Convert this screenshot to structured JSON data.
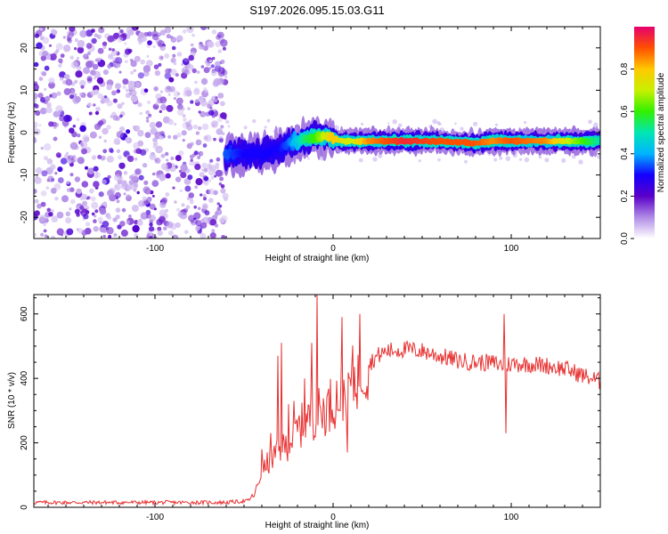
{
  "chart_data": [
    {
      "type": "heatmap",
      "title": "S197.2026.095.15.03.G11",
      "xlabel": "Height of straight line (km)",
      "ylabel": "Frequency (Hz)",
      "xlim": [
        -168,
        150
      ],
      "ylim": [
        -25,
        25
      ],
      "xticks": [
        -100,
        0,
        100
      ],
      "yticks": [
        -20,
        -10,
        0,
        10,
        20
      ],
      "noise_region_x": [
        -168,
        -60
      ],
      "signal_track": {
        "x": [
          -60,
          -50,
          -40,
          -30,
          -25,
          -20,
          -15,
          -10,
          -5,
          0,
          5,
          10,
          20,
          40,
          60,
          80,
          90,
          100,
          120,
          150
        ],
        "freq": [
          -5,
          -5,
          -5,
          -4,
          -2.5,
          -2,
          -1.5,
          -1,
          -1,
          -1.5,
          -2,
          -2,
          -2,
          -2,
          -2,
          -2.5,
          -2,
          -2,
          -2,
          -2
        ],
        "amplitude": [
          0.35,
          0.3,
          0.3,
          0.3,
          0.35,
          0.45,
          0.55,
          0.6,
          0.7,
          0.8,
          0.75,
          0.7,
          0.85,
          0.95,
          0.9,
          0.9,
          0.85,
          0.9,
          0.85,
          0.5
        ]
      },
      "colorbar": {
        "label": "Normalized spectral amplitude",
        "range": [
          0,
          1
        ],
        "ticks": [
          "0.0",
          "0.2",
          "0.4",
          "0.6",
          "0.8"
        ],
        "colors": [
          "#ffffff",
          "#b08be6",
          "#5a00c8",
          "#1400ff",
          "#00b4ff",
          "#00e6b4",
          "#32f000",
          "#c8f000",
          "#ffc800",
          "#ff5000",
          "#e6006e"
        ]
      }
    },
    {
      "type": "line",
      "xlabel": "Height of straight line (km)",
      "ylabel": "SNR (10 * v/v)",
      "xlim": [
        -168,
        150
      ],
      "ylim": [
        0,
        660
      ],
      "xticks": [
        -100,
        0,
        100
      ],
      "yticks": [
        0,
        200,
        400,
        600
      ],
      "color": "#e83030",
      "envelope": {
        "x": [
          -168,
          -60,
          -48,
          -44,
          -40,
          -35,
          -30,
          -25,
          -20,
          -15,
          -10,
          -5,
          0,
          5,
          10,
          15,
          20,
          25,
          30,
          40,
          50,
          60,
          70,
          80,
          90,
          95,
          100,
          110,
          120,
          130,
          140,
          150
        ],
        "y": [
          15,
          15,
          20,
          40,
          110,
          150,
          170,
          200,
          240,
          270,
          290,
          300,
          330,
          350,
          390,
          420,
          445,
          470,
          485,
          490,
          485,
          470,
          455,
          450,
          448,
          440,
          445,
          445,
          440,
          430,
          410,
          390
        ]
      },
      "spikes": [
        {
          "x": -40,
          "y": 180
        },
        {
          "x": -35,
          "y": 230
        },
        {
          "x": -31,
          "y": 470
        },
        {
          "x": -29,
          "y": 510
        },
        {
          "x": -25,
          "y": 320
        },
        {
          "x": -22,
          "y": 330
        },
        {
          "x": -16,
          "y": 400
        },
        {
          "x": -12,
          "y": 510
        },
        {
          "x": -9,
          "y": 660
        },
        {
          "x": 5,
          "y": 590
        },
        {
          "x": 8,
          "y": 170
        },
        {
          "x": 15,
          "y": 600
        },
        {
          "x": 96,
          "y": 600
        },
        {
          "x": 97,
          "y": 230
        }
      ]
    }
  ]
}
